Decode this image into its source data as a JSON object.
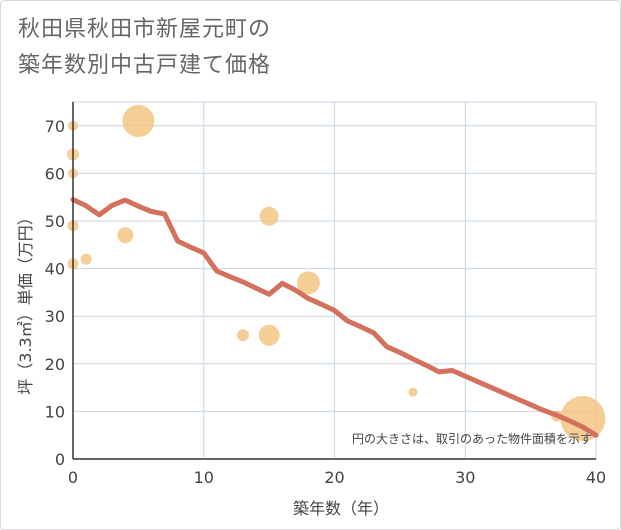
{
  "title_line1": "秋田県秋田市新屋元町の",
  "title_line2": "築年数別中古戸建て価格",
  "chart_data": {
    "type": "scatter",
    "title": "秋田県秋田市新屋元町の築年数別中古戸建て価格",
    "xlabel": "築年数（年）",
    "ylabel": "坪（3.3㎡）単価（万円）",
    "xlim": [
      0,
      40
    ],
    "ylim": [
      0,
      75
    ],
    "xticks": [
      0,
      10,
      20,
      30,
      40
    ],
    "yticks": [
      0,
      10,
      20,
      30,
      40,
      50,
      60,
      70
    ],
    "grid": true,
    "note": "円の大きさは、取引のあった物件面積を示す",
    "colors": {
      "bubble": "#f2c27a",
      "line": "#d4705e",
      "grid": "#c9d6e3"
    },
    "bubbles": [
      {
        "x": 0,
        "y": 70,
        "size": 1
      },
      {
        "x": 0,
        "y": 64,
        "size": 1.2
      },
      {
        "x": 0,
        "y": 60,
        "size": 1
      },
      {
        "x": 0,
        "y": 49,
        "size": 1.1
      },
      {
        "x": 0,
        "y": 41,
        "size": 1.1
      },
      {
        "x": 1,
        "y": 42,
        "size": 1.1
      },
      {
        "x": 4,
        "y": 47,
        "size": 1.6
      },
      {
        "x": 5,
        "y": 71,
        "size": 3.2
      },
      {
        "x": 13,
        "y": 26,
        "size": 1.2
      },
      {
        "x": 15,
        "y": 51,
        "size": 1.9
      },
      {
        "x": 15,
        "y": 26,
        "size": 2.1
      },
      {
        "x": 18,
        "y": 37,
        "size": 2.3
      },
      {
        "x": 26,
        "y": 14,
        "size": 0.9
      },
      {
        "x": 37,
        "y": 9,
        "size": 1.1
      },
      {
        "x": 39,
        "y": 8.5,
        "size": 4.5
      }
    ],
    "trend": {
      "x": [
        0,
        1,
        2,
        3,
        4,
        5,
        6,
        7,
        8,
        9,
        10,
        11,
        12,
        13,
        14,
        15,
        16,
        17,
        18,
        19,
        20,
        21,
        22,
        23,
        24,
        25,
        26,
        27,
        28,
        29,
        30,
        31,
        32,
        33,
        34,
        35,
        36,
        37,
        38,
        39,
        40
      ],
      "y": [
        54.5,
        53.2,
        51.3,
        53.3,
        54.4,
        53.1,
        52,
        51.5,
        45.8,
        44.5,
        43.3,
        39.5,
        38.3,
        37.2,
        35.9,
        34.6,
        36.9,
        35.5,
        33.7,
        32.5,
        31.2,
        29,
        27.8,
        26.5,
        23.6,
        22.4,
        21,
        19.7,
        18.3,
        18.6,
        17.4,
        16.2,
        15,
        13.8,
        12.6,
        11.4,
        10.2,
        9.2,
        8,
        6.7,
        5
      ]
    }
  }
}
